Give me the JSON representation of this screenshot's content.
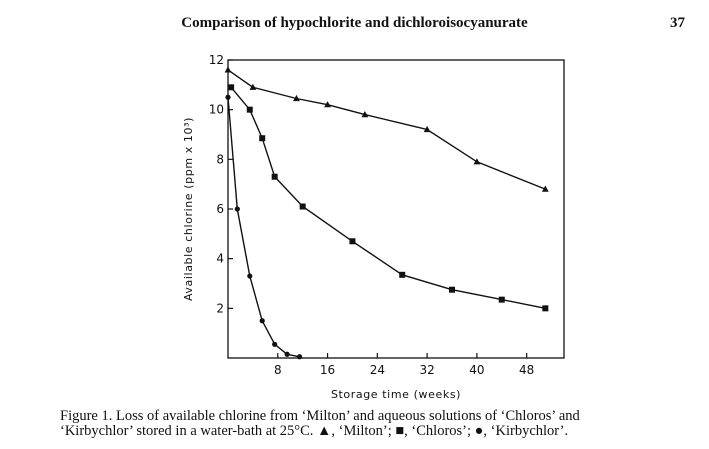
{
  "header": {
    "running_title": "Comparison of hypochlorite and dichloroisocyanurate",
    "page_number": "37"
  },
  "chart_data": {
    "type": "line",
    "title": "",
    "xlabel": "Storage time (weeks)",
    "ylabel": "Available chlorine (ppm x 10³)",
    "xlim": [
      0,
      54
    ],
    "ylim": [
      0,
      12
    ],
    "x_ticks": [
      8,
      16,
      24,
      32,
      40,
      48
    ],
    "y_ticks": [
      2,
      4,
      6,
      8,
      10,
      12
    ],
    "grid": false,
    "legend": "none (described in caption)",
    "series": [
      {
        "marker": "triangle",
        "points": [
          [
            0,
            11.6
          ],
          [
            4,
            10.9
          ],
          [
            11,
            10.45
          ],
          [
            16,
            10.2
          ],
          [
            22,
            9.8
          ],
          [
            32,
            9.2
          ],
          [
            40,
            7.9
          ],
          [
            51,
            6.8
          ]
        ]
      },
      {
        "marker": "square",
        "points": [
          [
            0.5,
            10.9
          ],
          [
            3.5,
            10.0
          ],
          [
            5.5,
            8.85
          ],
          [
            7.5,
            7.3
          ],
          [
            12,
            6.1
          ],
          [
            20,
            4.7
          ],
          [
            28,
            3.35
          ],
          [
            36,
            2.75
          ],
          [
            44,
            2.35
          ],
          [
            51,
            2.0
          ]
        ]
      },
      {
        "marker": "circle",
        "points": [
          [
            0,
            10.5
          ],
          [
            1.5,
            6.0
          ],
          [
            3.5,
            3.3
          ],
          [
            5.5,
            1.5
          ],
          [
            7.5,
            0.55
          ],
          [
            9.5,
            0.15
          ],
          [
            11.5,
            0.05
          ]
        ]
      }
    ]
  },
  "caption": {
    "line1": "Figure 1. Loss of available chlorine from ‘Milton’ and aqueous solutions of ‘Chloros’ and",
    "line2": "‘Kirbychlor’ stored in a water-bath at 25°C. ▲, ‘Milton’; ■, ‘Chloros’; ●, ‘Kirbychlor’."
  }
}
